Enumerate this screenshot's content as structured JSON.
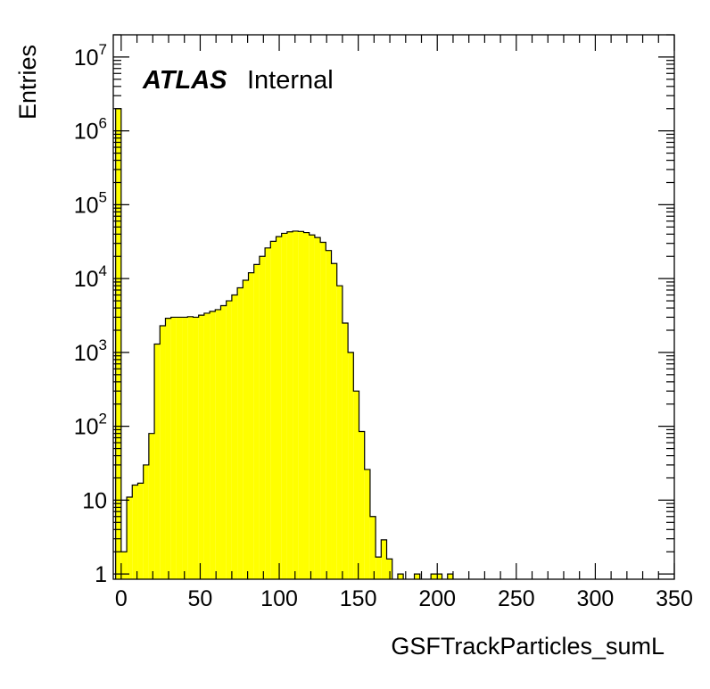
{
  "chart_data": {
    "type": "histogram",
    "xlabel": "GSFTrackParticles_sumL",
    "ylabel": "Entries",
    "annotation": {
      "experiment": "ATLAS",
      "status": "Internal"
    },
    "fill_color": "#ffff00",
    "line_color": "#000000",
    "xlim": [
      -5,
      350
    ],
    "ylim": [
      0.85,
      20000000
    ],
    "yscale": "log",
    "bin_width": 3.5,
    "x_ticks": [
      0,
      50,
      100,
      150,
      200,
      250,
      300,
      350
    ],
    "x_tick_labels": [
      "0",
      "50",
      "100",
      "150",
      "200",
      "250",
      "300",
      "350"
    ],
    "y_ticks": [
      1,
      10,
      100,
      1000,
      10000,
      100000,
      1000000,
      10000000
    ],
    "y_tick_labels": [
      {
        "base": "1",
        "exp": ""
      },
      {
        "base": "10",
        "exp": ""
      },
      {
        "base": "10",
        "exp": "2"
      },
      {
        "base": "10",
        "exp": "3"
      },
      {
        "base": "10",
        "exp": "4"
      },
      {
        "base": "10",
        "exp": "5"
      },
      {
        "base": "10",
        "exp": "6"
      },
      {
        "base": "10",
        "exp": "7"
      }
    ],
    "bins": [
      [
        -3.5,
        2000000
      ],
      [
        0,
        2
      ],
      [
        3.5,
        11
      ],
      [
        7,
        16
      ],
      [
        10.5,
        17
      ],
      [
        14,
        30
      ],
      [
        17.5,
        80
      ],
      [
        21,
        1300
      ],
      [
        24.5,
        2300
      ],
      [
        28,
        2900
      ],
      [
        31.5,
        3000
      ],
      [
        35,
        3000
      ],
      [
        38.5,
        3000
      ],
      [
        42,
        3050
      ],
      [
        45.5,
        3000
      ],
      [
        49,
        3200
      ],
      [
        52.5,
        3400
      ],
      [
        56,
        3600
      ],
      [
        59.5,
        3800
      ],
      [
        63,
        4300
      ],
      [
        66.5,
        5000
      ],
      [
        70,
        6000
      ],
      [
        73.5,
        7500
      ],
      [
        77,
        9500
      ],
      [
        80.5,
        12000
      ],
      [
        84,
        15500
      ],
      [
        87.5,
        20000
      ],
      [
        91,
        26000
      ],
      [
        94.5,
        32000
      ],
      [
        98,
        37000
      ],
      [
        101.5,
        41000
      ],
      [
        105,
        43000
      ],
      [
        108.5,
        44000
      ],
      [
        112,
        43500
      ],
      [
        115.5,
        42000
      ],
      [
        119,
        39000
      ],
      [
        122.5,
        36000
      ],
      [
        126,
        31000
      ],
      [
        129.5,
        24000
      ],
      [
        133,
        16000
      ],
      [
        136.5,
        8000
      ],
      [
        140,
        2500
      ],
      [
        143.5,
        1000
      ],
      [
        147,
        300
      ],
      [
        150.5,
        85
      ],
      [
        154,
        26
      ],
      [
        157.5,
        6
      ],
      [
        161,
        1.7
      ],
      [
        164.5,
        2.9
      ],
      [
        168,
        1.6
      ],
      [
        171.5,
        0
      ],
      [
        175,
        1
      ],
      [
        178.5,
        0
      ],
      [
        182,
        0
      ],
      [
        185.5,
        1
      ],
      [
        189,
        0
      ],
      [
        192.5,
        0
      ],
      [
        196,
        1
      ],
      [
        199.5,
        1
      ],
      [
        203,
        0
      ],
      [
        206.5,
        1
      ]
    ]
  }
}
